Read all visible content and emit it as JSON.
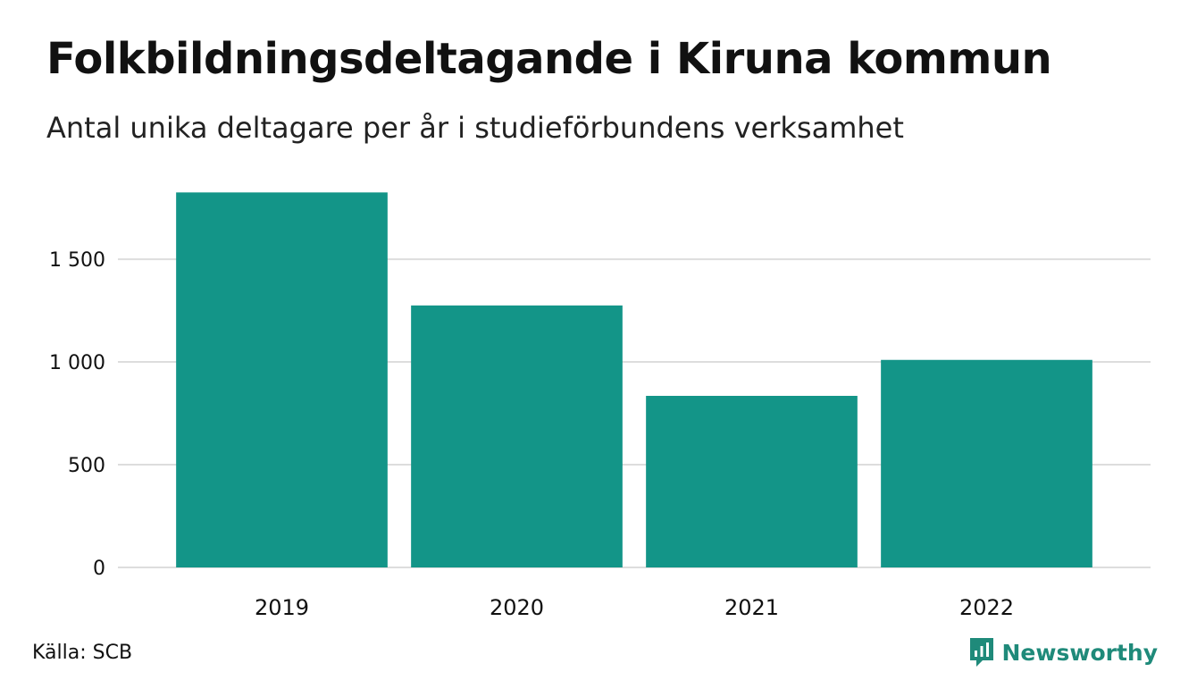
{
  "header": {
    "title": "Folkbildningsdeltagande i Kiruna kommun",
    "subtitle": "Antal unika deltagare per år i studieförbundens verksamhet"
  },
  "footer": {
    "source": "Källa: SCB",
    "brand": "Newsworthy",
    "brand_icon": "newsworthy-logo-icon"
  },
  "colors": {
    "bar": "#139588",
    "grid": "#dddddd",
    "brand": "#1f8a7a",
    "text": "#111111"
  },
  "chart_data": {
    "type": "bar",
    "categories": [
      "2019",
      "2020",
      "2021",
      "2022"
    ],
    "values": [
      1825,
      1275,
      835,
      1010
    ],
    "ylim": [
      0,
      1870
    ],
    "yticks": [
      0,
      500,
      1000,
      1500
    ],
    "ytick_labels": [
      "0",
      "500",
      "1 000",
      "1 500"
    ],
    "grid": true,
    "legend": "none",
    "xlabel": "",
    "ylabel": ""
  }
}
